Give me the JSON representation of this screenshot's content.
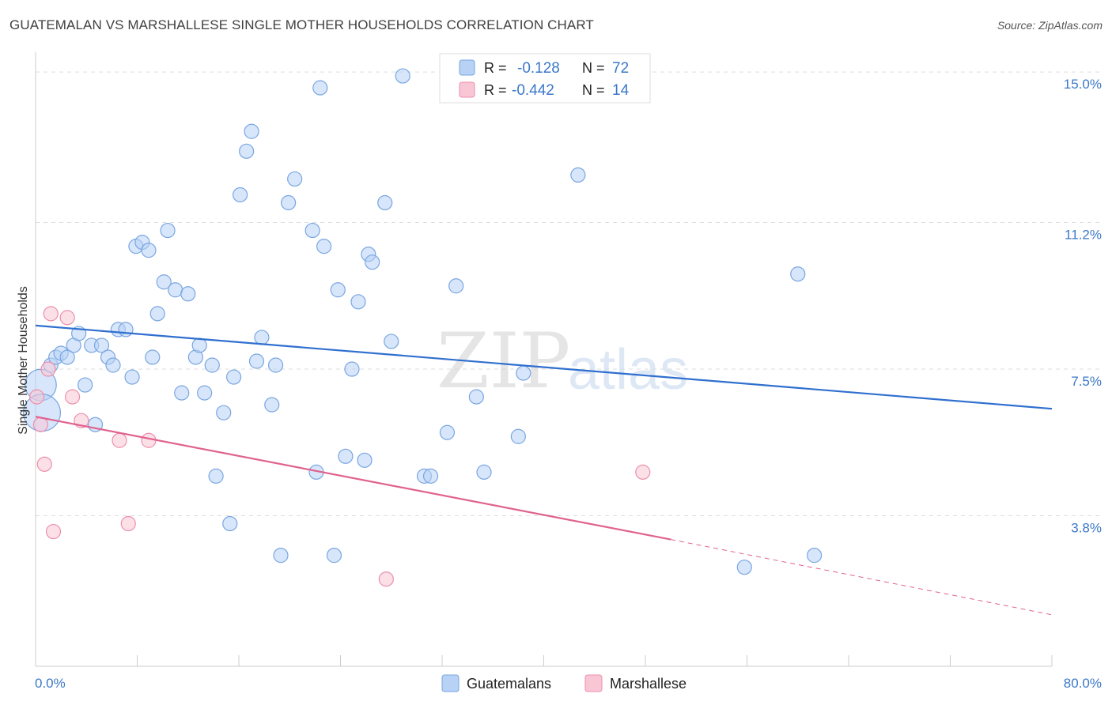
{
  "header": {
    "title": "GUATEMALAN VS MARSHALLESE SINGLE MOTHER HOUSEHOLDS CORRELATION CHART",
    "source": "Source: ZipAtlas.com"
  },
  "watermark": {
    "zip": "ZIP",
    "atlas": "atlas"
  },
  "colors": {
    "guatemalans_fill": "#b7d2f5",
    "guatemalans_stroke": "#7aa6e0",
    "guatemalans_line": "#2f6fcf",
    "marshallese_fill": "#f9c6d6",
    "marshallese_stroke": "#ec8fac",
    "marshallese_line": "#e0628f",
    "tick_label": "#3b78c8",
    "grid": "#dddddd"
  },
  "chart_data": {
    "type": "scatter",
    "title": "GUATEMALAN VS MARSHALLESE SINGLE MOTHER HOUSEHOLDS CORRELATION CHART",
    "xlabel": "",
    "ylabel": "Single Mother Households",
    "xlim": [
      0,
      80
    ],
    "ylim": [
      0,
      15.5
    ],
    "x_tick_labels": [
      "0.0%",
      "80.0%"
    ],
    "y_ticks": [
      3.8,
      7.5,
      11.2,
      15.0
    ],
    "y_tick_labels": [
      "3.8%",
      "7.5%",
      "11.2%",
      "15.0%"
    ],
    "grid": true,
    "legend_position": "top-center",
    "stats": [
      {
        "r_label": "R =",
        "r_value": "-0.128",
        "n_label": "N =",
        "n_value": "72"
      },
      {
        "r_label": "R =",
        "r_value": "-0.442",
        "n_label": "N =",
        "n_value": "14"
      }
    ],
    "series": [
      {
        "name": "Guatemalans",
        "trend": {
          "x": [
            0,
            80
          ],
          "y": [
            8.6,
            6.5
          ]
        },
        "points": [
          {
            "x": 0.4,
            "y": 7.1,
            "s": 2.2
          },
          {
            "x": 0.5,
            "y": 6.4,
            "s": 2.6
          },
          {
            "x": 1.2,
            "y": 7.6,
            "s": 1
          },
          {
            "x": 1.6,
            "y": 7.8,
            "s": 1
          },
          {
            "x": 2.0,
            "y": 7.9,
            "s": 1
          },
          {
            "x": 2.5,
            "y": 7.8,
            "s": 1
          },
          {
            "x": 3.0,
            "y": 8.1,
            "s": 1
          },
          {
            "x": 3.4,
            "y": 8.4,
            "s": 1
          },
          {
            "x": 3.9,
            "y": 7.1,
            "s": 1
          },
          {
            "x": 4.7,
            "y": 6.1,
            "s": 1
          },
          {
            "x": 4.4,
            "y": 8.1,
            "s": 1
          },
          {
            "x": 5.2,
            "y": 8.1,
            "s": 1
          },
          {
            "x": 5.7,
            "y": 7.8,
            "s": 1
          },
          {
            "x": 6.1,
            "y": 7.6,
            "s": 1
          },
          {
            "x": 6.5,
            "y": 8.5,
            "s": 1
          },
          {
            "x": 7.1,
            "y": 8.5,
            "s": 1
          },
          {
            "x": 7.6,
            "y": 7.3,
            "s": 1
          },
          {
            "x": 7.9,
            "y": 10.6,
            "s": 1
          },
          {
            "x": 8.4,
            "y": 10.7,
            "s": 1
          },
          {
            "x": 8.9,
            "y": 10.5,
            "s": 1
          },
          {
            "x": 9.2,
            "y": 7.8,
            "s": 1
          },
          {
            "x": 9.6,
            "y": 8.9,
            "s": 1
          },
          {
            "x": 10.1,
            "y": 9.7,
            "s": 1
          },
          {
            "x": 10.4,
            "y": 11.0,
            "s": 1
          },
          {
            "x": 11.0,
            "y": 9.5,
            "s": 1
          },
          {
            "x": 11.5,
            "y": 6.9,
            "s": 1
          },
          {
            "x": 12.0,
            "y": 9.4,
            "s": 1
          },
          {
            "x": 12.6,
            "y": 7.8,
            "s": 1
          },
          {
            "x": 12.9,
            "y": 8.1,
            "s": 1
          },
          {
            "x": 13.3,
            "y": 6.9,
            "s": 1
          },
          {
            "x": 13.9,
            "y": 7.6,
            "s": 1
          },
          {
            "x": 14.2,
            "y": 4.8,
            "s": 1
          },
          {
            "x": 14.8,
            "y": 6.4,
            "s": 1
          },
          {
            "x": 15.3,
            "y": 3.6,
            "s": 1
          },
          {
            "x": 15.6,
            "y": 7.3,
            "s": 1
          },
          {
            "x": 16.1,
            "y": 11.9,
            "s": 1
          },
          {
            "x": 16.6,
            "y": 13.0,
            "s": 1
          },
          {
            "x": 17.0,
            "y": 13.5,
            "s": 1
          },
          {
            "x": 17.4,
            "y": 7.7,
            "s": 1
          },
          {
            "x": 17.8,
            "y": 8.3,
            "s": 1
          },
          {
            "x": 18.6,
            "y": 6.6,
            "s": 1
          },
          {
            "x": 18.9,
            "y": 7.6,
            "s": 1
          },
          {
            "x": 19.3,
            "y": 2.8,
            "s": 1
          },
          {
            "x": 19.9,
            "y": 11.7,
            "s": 1
          },
          {
            "x": 20.4,
            "y": 12.3,
            "s": 1
          },
          {
            "x": 21.8,
            "y": 11.0,
            "s": 1
          },
          {
            "x": 22.1,
            "y": 4.9,
            "s": 1
          },
          {
            "x": 22.4,
            "y": 14.6,
            "s": 1
          },
          {
            "x": 22.7,
            "y": 10.6,
            "s": 1
          },
          {
            "x": 23.5,
            "y": 2.8,
            "s": 1
          },
          {
            "x": 23.8,
            "y": 9.5,
            "s": 1
          },
          {
            "x": 24.4,
            "y": 5.3,
            "s": 1
          },
          {
            "x": 24.9,
            "y": 7.5,
            "s": 1
          },
          {
            "x": 25.4,
            "y": 9.2,
            "s": 1
          },
          {
            "x": 25.9,
            "y": 5.2,
            "s": 1
          },
          {
            "x": 26.2,
            "y": 10.4,
            "s": 1
          },
          {
            "x": 26.5,
            "y": 10.2,
            "s": 1
          },
          {
            "x": 27.5,
            "y": 11.7,
            "s": 1
          },
          {
            "x": 28.0,
            "y": 8.2,
            "s": 1
          },
          {
            "x": 28.9,
            "y": 14.9,
            "s": 1
          },
          {
            "x": 30.6,
            "y": 4.8,
            "s": 1
          },
          {
            "x": 31.1,
            "y": 4.8,
            "s": 1
          },
          {
            "x": 32.4,
            "y": 5.9,
            "s": 1
          },
          {
            "x": 33.1,
            "y": 9.6,
            "s": 1
          },
          {
            "x": 34.7,
            "y": 6.8,
            "s": 1
          },
          {
            "x": 35.3,
            "y": 4.9,
            "s": 1
          },
          {
            "x": 38.0,
            "y": 5.8,
            "s": 1
          },
          {
            "x": 38.4,
            "y": 7.4,
            "s": 1
          },
          {
            "x": 42.7,
            "y": 12.4,
            "s": 1
          },
          {
            "x": 55.8,
            "y": 2.5,
            "s": 1
          },
          {
            "x": 60.0,
            "y": 9.9,
            "s": 1
          },
          {
            "x": 61.3,
            "y": 2.8,
            "s": 1
          }
        ]
      },
      {
        "name": "Marshallese",
        "trend": {
          "x": [
            0,
            50
          ],
          "y": [
            6.3,
            3.2
          ]
        },
        "trend_dashed": {
          "x": [
            50,
            80
          ],
          "y": [
            3.2,
            1.3
          ]
        },
        "points": [
          {
            "x": 0.1,
            "y": 6.8
          },
          {
            "x": 0.4,
            "y": 6.1
          },
          {
            "x": 0.7,
            "y": 5.1
          },
          {
            "x": 1.0,
            "y": 7.5
          },
          {
            "x": 1.2,
            "y": 8.9
          },
          {
            "x": 1.4,
            "y": 3.4
          },
          {
            "x": 2.5,
            "y": 8.8
          },
          {
            "x": 2.9,
            "y": 6.8
          },
          {
            "x": 3.6,
            "y": 6.2
          },
          {
            "x": 6.6,
            "y": 5.7
          },
          {
            "x": 7.3,
            "y": 3.6
          },
          {
            "x": 8.9,
            "y": 5.7
          },
          {
            "x": 27.6,
            "y": 2.2
          },
          {
            "x": 47.8,
            "y": 4.9
          }
        ]
      }
    ]
  }
}
